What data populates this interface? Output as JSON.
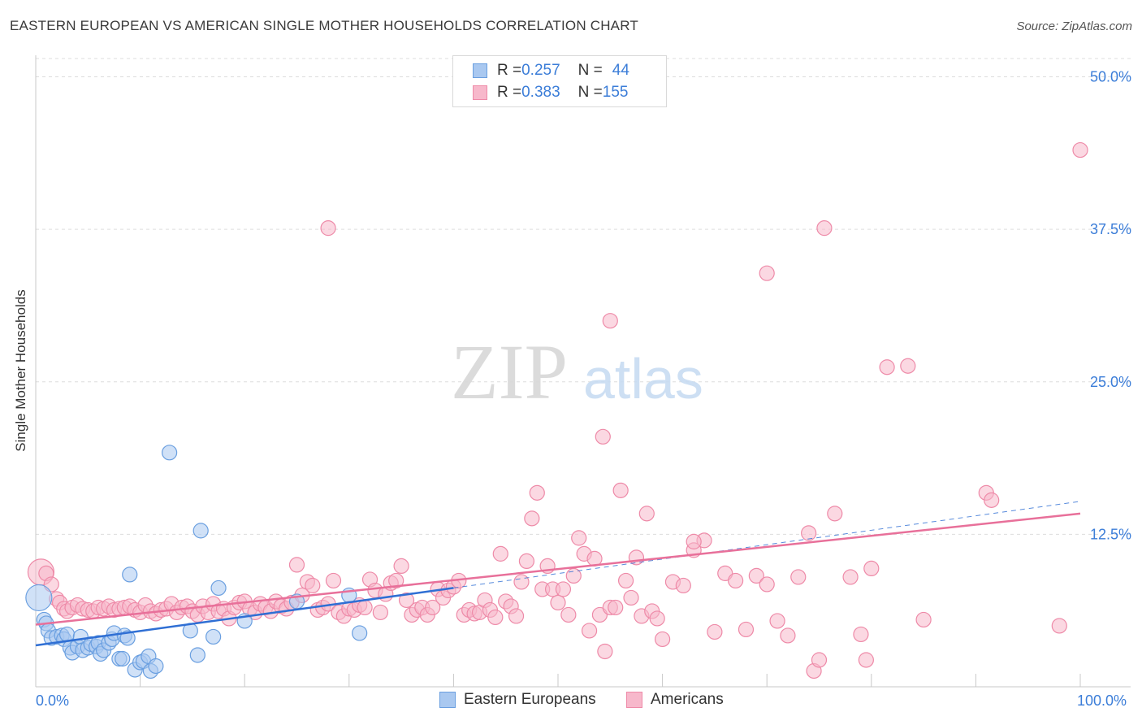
{
  "header": {
    "title": "EASTERN EUROPEAN VS AMERICAN SINGLE MOTHER HOUSEHOLDS CORRELATION CHART",
    "source": "Source: ZipAtlas.com"
  },
  "legend": {
    "rows": [
      {
        "r_label": "R = ",
        "r_value": "0.257",
        "n_label": "N = ",
        "n_value": "44",
        "color": "#a9c8f0"
      },
      {
        "r_label": "R = ",
        "r_value": "0.383",
        "n_label": "N = ",
        "n_value": "155",
        "color": "#f7b8cb"
      }
    ]
  },
  "bottom_legend": [
    "Eastern Europeans",
    "Americans"
  ],
  "watermark": {
    "zip": "ZIP",
    "atlas": "atlas"
  },
  "colors": {
    "blue_fill": "#a9c8f0",
    "blue_stroke": "#6a9fe0",
    "blue_line": "#2f6fd4",
    "pink_fill": "#f7b8cb",
    "pink_stroke": "#ee8aa8",
    "pink_line": "#e8709a",
    "grid": "#dddddd",
    "axis_text": "#3b7dd8"
  },
  "chart_data": {
    "type": "scatter",
    "title": "EASTERN EUROPEAN VS AMERICAN SINGLE MOTHER HOUSEHOLDS CORRELATION CHART",
    "xlabel": "",
    "ylabel": "Single Mother Households",
    "xlim": [
      0,
      100
    ],
    "ylim": [
      0,
      51.5
    ],
    "x_tick_labels": [
      "0.0%",
      "100.0%"
    ],
    "y_ticks": [
      12.5,
      25.0,
      37.5,
      50.0
    ],
    "y_tick_labels": [
      "12.5%",
      "25.0%",
      "37.5%",
      "50.0%"
    ],
    "grid": true,
    "series": [
      {
        "name": "Eastern Europeans",
        "points": [
          [
            0.3,
            7.3
          ],
          [
            0.8,
            5.5
          ],
          [
            1.0,
            5.2
          ],
          [
            1.2,
            4.6
          ],
          [
            1.5,
            4.0
          ],
          [
            2.0,
            4.1
          ],
          [
            2.5,
            4.2
          ],
          [
            2.7,
            3.9
          ],
          [
            3.0,
            4.3
          ],
          [
            3.3,
            3.2
          ],
          [
            3.5,
            2.8
          ],
          [
            4.0,
            3.3
          ],
          [
            4.3,
            4.1
          ],
          [
            4.5,
            3.0
          ],
          [
            5.0,
            3.2
          ],
          [
            5.3,
            3.5
          ],
          [
            5.8,
            3.3
          ],
          [
            6.0,
            3.6
          ],
          [
            6.2,
            2.7
          ],
          [
            6.5,
            3.0
          ],
          [
            7.0,
            3.6
          ],
          [
            7.3,
            3.9
          ],
          [
            7.5,
            4.4
          ],
          [
            8.0,
            2.3
          ],
          [
            8.3,
            2.3
          ],
          [
            8.5,
            4.2
          ],
          [
            8.8,
            4.0
          ],
          [
            9.0,
            9.2
          ],
          [
            9.5,
            1.4
          ],
          [
            10.0,
            2.0
          ],
          [
            10.3,
            2.1
          ],
          [
            10.8,
            2.5
          ],
          [
            11.0,
            1.3
          ],
          [
            11.5,
            1.7
          ],
          [
            12.8,
            19.2
          ],
          [
            14.8,
            4.6
          ],
          [
            15.5,
            2.6
          ],
          [
            15.8,
            12.8
          ],
          [
            17.0,
            4.1
          ],
          [
            17.5,
            8.1
          ],
          [
            20.0,
            5.4
          ],
          [
            25.0,
            7.0
          ],
          [
            30.0,
            7.5
          ],
          [
            31.0,
            4.4
          ]
        ]
      },
      {
        "name": "Americans",
        "points": [
          [
            0.5,
            9.4
          ],
          [
            1.0,
            9.3
          ],
          [
            1.5,
            8.4
          ],
          [
            2.0,
            7.2
          ],
          [
            2.3,
            6.9
          ],
          [
            2.7,
            6.4
          ],
          [
            3.0,
            6.2
          ],
          [
            3.5,
            6.5
          ],
          [
            4.0,
            6.7
          ],
          [
            4.5,
            6.4
          ],
          [
            5.0,
            6.3
          ],
          [
            5.5,
            6.2
          ],
          [
            6.0,
            6.5
          ],
          [
            6.5,
            6.4
          ],
          [
            7.0,
            6.6
          ],
          [
            7.5,
            6.3
          ],
          [
            8.0,
            6.4
          ],
          [
            8.5,
            6.5
          ],
          [
            9.0,
            6.6
          ],
          [
            9.5,
            6.3
          ],
          [
            10.0,
            6.1
          ],
          [
            10.5,
            6.7
          ],
          [
            11.0,
            6.2
          ],
          [
            11.5,
            6.0
          ],
          [
            12.0,
            6.3
          ],
          [
            12.5,
            6.4
          ],
          [
            13.0,
            6.8
          ],
          [
            13.5,
            6.1
          ],
          [
            14.0,
            6.5
          ],
          [
            14.5,
            6.6
          ],
          [
            15.0,
            6.2
          ],
          [
            15.5,
            5.9
          ],
          [
            16.0,
            6.6
          ],
          [
            16.5,
            6.1
          ],
          [
            17.0,
            6.8
          ],
          [
            17.5,
            6.2
          ],
          [
            18.0,
            6.4
          ],
          [
            18.5,
            5.6
          ],
          [
            19.0,
            6.5
          ],
          [
            19.5,
            6.9
          ],
          [
            20.0,
            7.0
          ],
          [
            20.5,
            6.4
          ],
          [
            21.0,
            6.1
          ],
          [
            21.5,
            6.8
          ],
          [
            22.0,
            6.5
          ],
          [
            22.5,
            6.2
          ],
          [
            23.0,
            7.0
          ],
          [
            23.5,
            6.6
          ],
          [
            24.0,
            6.4
          ],
          [
            24.5,
            6.9
          ],
          [
            25.0,
            10.0
          ],
          [
            25.5,
            7.5
          ],
          [
            26.0,
            8.6
          ],
          [
            26.5,
            8.3
          ],
          [
            27.0,
            6.3
          ],
          [
            27.5,
            6.5
          ],
          [
            28.0,
            6.8
          ],
          [
            28.5,
            8.7
          ],
          [
            29.0,
            6.1
          ],
          [
            29.5,
            5.8
          ],
          [
            30.0,
            6.4
          ],
          [
            30.5,
            6.3
          ],
          [
            31.0,
            6.7
          ],
          [
            31.5,
            6.5
          ],
          [
            32.0,
            8.8
          ],
          [
            32.5,
            7.9
          ],
          [
            33.0,
            6.1
          ],
          [
            33.5,
            7.6
          ],
          [
            34.0,
            8.5
          ],
          [
            34.5,
            8.7
          ],
          [
            35.0,
            9.9
          ],
          [
            35.5,
            7.1
          ],
          [
            36.0,
            5.9
          ],
          [
            36.5,
            6.3
          ],
          [
            37.0,
            6.5
          ],
          [
            37.5,
            5.9
          ],
          [
            38.0,
            6.5
          ],
          [
            38.5,
            8.0
          ],
          [
            39.0,
            7.3
          ],
          [
            39.5,
            7.9
          ],
          [
            40.0,
            8.2
          ],
          [
            40.5,
            8.7
          ],
          [
            41.0,
            5.9
          ],
          [
            41.5,
            6.3
          ],
          [
            42.0,
            6.0
          ],
          [
            42.5,
            6.1
          ],
          [
            43.0,
            7.1
          ],
          [
            43.5,
            6.3
          ],
          [
            44.0,
            5.7
          ],
          [
            44.5,
            10.9
          ],
          [
            45.0,
            7.0
          ],
          [
            45.5,
            6.6
          ],
          [
            46.0,
            5.8
          ],
          [
            46.5,
            8.6
          ],
          [
            47.0,
            10.3
          ],
          [
            47.5,
            13.8
          ],
          [
            48.0,
            15.9
          ],
          [
            48.5,
            8.0
          ],
          [
            49.0,
            9.9
          ],
          [
            49.5,
            8.0
          ],
          [
            50.0,
            6.9
          ],
          [
            50.5,
            8.0
          ],
          [
            51.0,
            5.9
          ],
          [
            51.5,
            9.1
          ],
          [
            52.0,
            12.2
          ],
          [
            52.5,
            10.9
          ],
          [
            53.0,
            4.6
          ],
          [
            53.5,
            10.5
          ],
          [
            54.0,
            5.9
          ],
          [
            54.5,
            2.9
          ],
          [
            55.0,
            6.5
          ],
          [
            55.5,
            6.5
          ],
          [
            56.0,
            16.1
          ],
          [
            56.5,
            8.7
          ],
          [
            57.0,
            7.3
          ],
          [
            57.5,
            10.6
          ],
          [
            58.0,
            5.8
          ],
          [
            58.5,
            14.2
          ],
          [
            59.0,
            6.2
          ],
          [
            59.5,
            5.6
          ],
          [
            60.0,
            3.9
          ],
          [
            61.0,
            8.6
          ],
          [
            62.0,
            8.3
          ],
          [
            63.0,
            11.2
          ],
          [
            64.0,
            12.0
          ],
          [
            65.0,
            4.5
          ],
          [
            66.0,
            9.3
          ],
          [
            67.0,
            8.7
          ],
          [
            68.0,
            4.7
          ],
          [
            69.0,
            9.1
          ],
          [
            70.0,
            8.4
          ],
          [
            71.0,
            5.4
          ],
          [
            72.0,
            4.2
          ],
          [
            73.0,
            9.0
          ],
          [
            74.0,
            12.6
          ],
          [
            74.5,
            1.3
          ],
          [
            75.0,
            2.2
          ],
          [
            76.5,
            14.2
          ],
          [
            78.0,
            9.0
          ],
          [
            79.0,
            4.3
          ],
          [
            79.5,
            2.2
          ],
          [
            80.0,
            9.7
          ],
          [
            85.0,
            5.5
          ],
          [
            91.0,
            15.9
          ],
          [
            91.5,
            15.3
          ],
          [
            98.0,
            5.0
          ],
          [
            100.0,
            44.0
          ],
          [
            75.5,
            37.6
          ],
          [
            70.0,
            33.9
          ],
          [
            55.0,
            30.0
          ],
          [
            81.5,
            26.2
          ],
          [
            83.5,
            26.3
          ],
          [
            54.3,
            20.5
          ],
          [
            63.0,
            11.9
          ],
          [
            28.0,
            37.6
          ]
        ]
      }
    ],
    "trendlines": [
      {
        "series": "Eastern Europeans",
        "x": [
          0,
          40
        ],
        "y": [
          3.4,
          8.1
        ],
        "dashed_extension_to": [
          100,
          15.2
        ]
      },
      {
        "series": "Americans",
        "x": [
          0,
          100
        ],
        "y": [
          5.1,
          14.2
        ]
      }
    ]
  }
}
